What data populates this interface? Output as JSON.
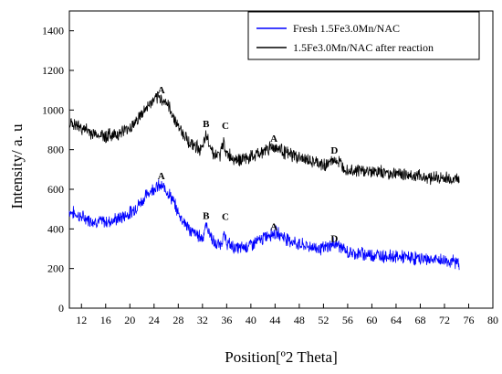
{
  "chart_data": {
    "type": "line",
    "xlabel": "Position[º2 Theta]",
    "ylabel": "Intensity/ a. u",
    "xlim": [
      10,
      80
    ],
    "ylim": [
      0,
      1500
    ],
    "xticks": [
      12,
      16,
      20,
      24,
      28,
      32,
      36,
      40,
      44,
      48,
      52,
      56,
      60,
      64,
      68,
      72,
      76,
      80
    ],
    "yticks": [
      0,
      200,
      400,
      600,
      800,
      1000,
      1200,
      1400
    ],
    "grid": false,
    "legend_position": "top-right",
    "series": [
      {
        "name": "Fresh 1.5Fe3.0Mn/NAC",
        "color": "#0000ff",
        "x": [
          10,
          12,
          14,
          16,
          18,
          20,
          22,
          23,
          24,
          25,
          26,
          27,
          28,
          30,
          32,
          32.6,
          33.2,
          34,
          35,
          35.5,
          36,
          37,
          38,
          40,
          42,
          43,
          44,
          45,
          46,
          48,
          50,
          52,
          54,
          56,
          60,
          64,
          68,
          72,
          74.5
        ],
        "y": [
          490,
          460,
          440,
          435,
          450,
          480,
          540,
          580,
          610,
          615,
          600,
          550,
          480,
          390,
          355,
          420,
          380,
          320,
          320,
          370,
          330,
          310,
          300,
          320,
          350,
          375,
          380,
          370,
          350,
          320,
          310,
          300,
          330,
          280,
          270,
          260,
          250,
          240,
          230
        ]
      },
      {
        "name": "1.5Fe3.0Mn/NAC after reaction",
        "color": "#000000",
        "x": [
          10,
          12,
          14,
          16,
          18,
          20,
          22,
          23,
          24,
          25,
          26,
          27,
          28,
          30,
          32,
          32.6,
          33.2,
          34,
          35,
          35.5,
          36,
          37,
          38,
          40,
          42,
          43,
          44,
          45,
          46,
          48,
          50,
          52,
          54,
          56,
          60,
          64,
          68,
          72,
          74.5
        ],
        "y": [
          935,
          910,
          880,
          870,
          880,
          910,
          980,
          1020,
          1050,
          1060,
          1040,
          980,
          920,
          830,
          800,
          870,
          830,
          770,
          775,
          840,
          780,
          760,
          750,
          760,
          790,
          810,
          815,
          800,
          780,
          760,
          740,
          720,
          750,
          700,
          690,
          680,
          665,
          655,
          650
        ]
      }
    ],
    "annotations": [
      {
        "text": "A",
        "x": 25.2,
        "y": 1085
      },
      {
        "text": "B",
        "x": 32.6,
        "y": 915
      },
      {
        "text": "C",
        "x": 35.8,
        "y": 905
      },
      {
        "text": "A",
        "x": 43.8,
        "y": 840
      },
      {
        "text": "D",
        "x": 53.8,
        "y": 780
      },
      {
        "text": "A",
        "x": 25.2,
        "y": 650
      },
      {
        "text": "B",
        "x": 32.6,
        "y": 450
      },
      {
        "text": "C",
        "x": 35.8,
        "y": 445
      },
      {
        "text": "A",
        "x": 43.8,
        "y": 395
      },
      {
        "text": "D",
        "x": 53.8,
        "y": 335
      }
    ]
  }
}
